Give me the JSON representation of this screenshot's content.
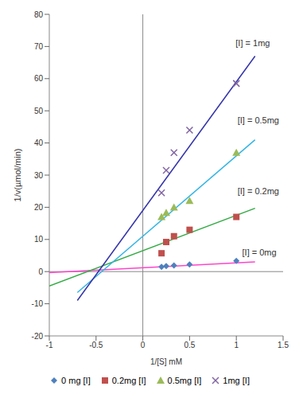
{
  "chart_data": {
    "type": "scatter",
    "x_label": "1/[S] mM",
    "y_label": "1/v(µmol/min)",
    "xlim": [
      -1,
      1.5
    ],
    "xticks": [
      -1,
      -0.5,
      0,
      0.5,
      1,
      1.5
    ],
    "ylim": [
      -20,
      80
    ],
    "yticks": [
      -20,
      -10,
      0,
      10,
      20,
      30,
      40,
      50,
      60,
      70,
      80
    ],
    "grid": false,
    "legend": "bottom",
    "series": [
      {
        "name": "0 mg [I]",
        "color": "#4F81BD",
        "marker": "diamond",
        "x": [
          0.2,
          0.25,
          0.333,
          0.5,
          1
        ],
        "values": [
          1.5,
          1.7,
          1.9,
          2.2,
          3.3
        ],
        "trendline": {
          "x": [
            -1,
            1.2
          ],
          "values": [
            -0.3,
            3
          ],
          "color": "#FF44CC"
        }
      },
      {
        "name": "0.2mg [I]",
        "color": "#C0504D",
        "marker": "square",
        "x": [
          0.2,
          0.25,
          0.333,
          0.5,
          1
        ],
        "values": [
          5.7,
          9.2,
          11,
          13,
          17
        ],
        "trendline": {
          "x": [
            -1,
            1.2
          ],
          "values": [
            -4.5,
            19.7
          ],
          "color": "#33AA44"
        }
      },
      {
        "name": "0.5mg [I]",
        "color": "#9BBB59",
        "marker": "triangle",
        "x": [
          0.2,
          0.25,
          0.333,
          0.5,
          1
        ],
        "values": [
          17,
          18.3,
          20,
          22,
          37
        ],
        "trendline": {
          "x": [
            -0.7,
            1.2
          ],
          "values": [
            -6.5,
            41
          ],
          "color": "#33B5E5"
        }
      },
      {
        "name": "1mg [I]",
        "color": "#8064A2",
        "marker": "x",
        "x": [
          0.2,
          0.25,
          0.333,
          0.5,
          1
        ],
        "values": [
          24.5,
          31.5,
          37,
          44,
          58.5
        ],
        "trendline": {
          "x": [
            -0.7,
            1.2
          ],
          "values": [
            -9,
            67
          ],
          "color": "#3333AA"
        }
      }
    ],
    "annotations": [
      {
        "text": "[I] = 1mg",
        "x": 0.95,
        "y": 71
      },
      {
        "text": "[I] = 0.5mg",
        "x": 0.97,
        "y": 47
      },
      {
        "text": "[I] = 0.2mg",
        "x": 0.97,
        "y": 25
      },
      {
        "text": "[I] = 0mg",
        "x": 1.02,
        "y": 6
      }
    ]
  }
}
